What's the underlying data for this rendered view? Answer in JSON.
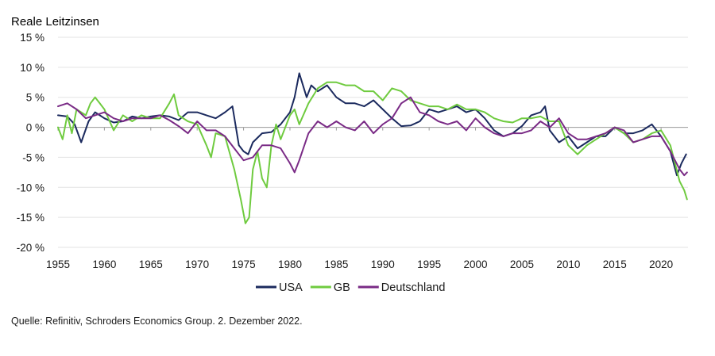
{
  "chart_data": {
    "type": "line",
    "title": "Reale Leitzinsen",
    "xlabel": "",
    "ylabel": "",
    "xlim": [
      1955,
      2022.9
    ],
    "ylim": [
      -20,
      15
    ],
    "x_ticks": [
      "1955",
      "1960",
      "1965",
      "1970",
      "1975",
      "1980",
      "1985",
      "1990",
      "1995",
      "2000",
      "2005",
      "2010",
      "2015",
      "2020"
    ],
    "y_ticks": [
      "15 %",
      "10 %",
      "5 %",
      "0 %",
      "-5 %",
      "-10 %",
      "-15 %",
      "-20 %"
    ],
    "grid": "horizontal",
    "legend_position": "bottom",
    "series": [
      {
        "name": "USA",
        "color": "#1b2a5e",
        "points": [
          [
            1955,
            2
          ],
          [
            1956,
            1.8
          ],
          [
            1956.8,
            0.5
          ],
          [
            1957.5,
            -2.5
          ],
          [
            1958.3,
            1
          ],
          [
            1959,
            2.5
          ],
          [
            1960,
            1.5
          ],
          [
            1961,
            0.8
          ],
          [
            1962,
            1
          ],
          [
            1963,
            1.8
          ],
          [
            1964,
            1.5
          ],
          [
            1965,
            1.8
          ],
          [
            1966,
            2
          ],
          [
            1967,
            1.8
          ],
          [
            1968,
            1.2
          ],
          [
            1969,
            2.5
          ],
          [
            1970,
            2.5
          ],
          [
            1971,
            2
          ],
          [
            1972,
            1.5
          ],
          [
            1973,
            2.5
          ],
          [
            1973.8,
            3.5
          ],
          [
            1974.5,
            -3
          ],
          [
            1975,
            -4
          ],
          [
            1975.5,
            -4.5
          ],
          [
            1976,
            -2.5
          ],
          [
            1977,
            -1
          ],
          [
            1978,
            -0.8
          ],
          [
            1979,
            0.5
          ],
          [
            1980,
            2.5
          ],
          [
            1980.5,
            5
          ],
          [
            1981,
            9
          ],
          [
            1981.3,
            7.5
          ],
          [
            1981.8,
            5
          ],
          [
            1982.3,
            7
          ],
          [
            1983,
            6
          ],
          [
            1984,
            7
          ],
          [
            1985,
            5
          ],
          [
            1986,
            4
          ],
          [
            1987,
            4
          ],
          [
            1988,
            3.5
          ],
          [
            1989,
            4.5
          ],
          [
            1990,
            3
          ],
          [
            1991,
            1.5
          ],
          [
            1992,
            0.2
          ],
          [
            1993,
            0.3
          ],
          [
            1994,
            1
          ],
          [
            1995,
            3
          ],
          [
            1996,
            2.5
          ],
          [
            1997,
            3
          ],
          [
            1998,
            3.5
          ],
          [
            1999,
            2.5
          ],
          [
            2000,
            3
          ],
          [
            2001,
            1.5
          ],
          [
            2002,
            -0.5
          ],
          [
            2003,
            -1.5
          ],
          [
            2004,
            -1
          ],
          [
            2005,
            0.2
          ],
          [
            2006,
            2
          ],
          [
            2007,
            2.5
          ],
          [
            2007.5,
            3.5
          ],
          [
            2008,
            -0.5
          ],
          [
            2009,
            -2.5
          ],
          [
            2010,
            -1.5
          ],
          [
            2011,
            -3.5
          ],
          [
            2012,
            -2.5
          ],
          [
            2013,
            -1.5
          ],
          [
            2014,
            -1.5
          ],
          [
            2015,
            0
          ],
          [
            2016,
            -1
          ],
          [
            2017,
            -1
          ],
          [
            2018,
            -0.5
          ],
          [
            2019,
            0.5
          ],
          [
            2020,
            -1.5
          ],
          [
            2021,
            -4
          ],
          [
            2021.7,
            -8
          ],
          [
            2022.2,
            -6
          ],
          [
            2022.7,
            -4.5
          ]
        ]
      },
      {
        "name": "GB",
        "color": "#6fcb3f",
        "points": [
          [
            1955,
            0
          ],
          [
            1955.5,
            -2
          ],
          [
            1956,
            2
          ],
          [
            1956.5,
            -1
          ],
          [
            1957,
            3
          ],
          [
            1958,
            2
          ],
          [
            1958.5,
            4
          ],
          [
            1959,
            5
          ],
          [
            1959.5,
            4
          ],
          [
            1960,
            3
          ],
          [
            1961,
            -0.5
          ],
          [
            1962,
            2
          ],
          [
            1963,
            1
          ],
          [
            1964,
            2
          ],
          [
            1965,
            1.5
          ],
          [
            1966,
            1.5
          ],
          [
            1967,
            4
          ],
          [
            1967.5,
            5.5
          ],
          [
            1968,
            2
          ],
          [
            1969,
            1
          ],
          [
            1970,
            0.5
          ],
          [
            1971,
            -3
          ],
          [
            1971.5,
            -5
          ],
          [
            1972,
            -1
          ],
          [
            1973,
            -1.5
          ],
          [
            1974,
            -7
          ],
          [
            1974.7,
            -12
          ],
          [
            1975.2,
            -16
          ],
          [
            1975.6,
            -15
          ],
          [
            1976,
            -7
          ],
          [
            1976.5,
            -4
          ],
          [
            1977,
            -8.5
          ],
          [
            1977.5,
            -10
          ],
          [
            1978,
            -3
          ],
          [
            1978.5,
            0.5
          ],
          [
            1979,
            -2
          ],
          [
            1980,
            2
          ],
          [
            1980.5,
            3
          ],
          [
            1981,
            0.5
          ],
          [
            1982,
            4
          ],
          [
            1983,
            6.5
          ],
          [
            1984,
            7.5
          ],
          [
            1985,
            7.5
          ],
          [
            1986,
            7
          ],
          [
            1987,
            7
          ],
          [
            1988,
            6
          ],
          [
            1989,
            6
          ],
          [
            1990,
            4.5
          ],
          [
            1991,
            6.5
          ],
          [
            1992,
            6
          ],
          [
            1993,
            4.5
          ],
          [
            1994,
            4
          ],
          [
            1995,
            3.5
          ],
          [
            1996,
            3.5
          ],
          [
            1997,
            3
          ],
          [
            1998,
            3.8
          ],
          [
            1999,
            3
          ],
          [
            2000,
            3
          ],
          [
            2001,
            2.5
          ],
          [
            2002,
            1.5
          ],
          [
            2003,
            1
          ],
          [
            2004,
            0.8
          ],
          [
            2005,
            1.5
          ],
          [
            2006,
            1.5
          ],
          [
            2007,
            1.8
          ],
          [
            2008,
            1
          ],
          [
            2009,
            1
          ],
          [
            2010,
            -3
          ],
          [
            2011,
            -4.5
          ],
          [
            2012,
            -3
          ],
          [
            2013,
            -2
          ],
          [
            2014,
            -1
          ],
          [
            2015,
            0
          ],
          [
            2016,
            -1
          ],
          [
            2017,
            -2.5
          ],
          [
            2018,
            -2
          ],
          [
            2019,
            -1
          ],
          [
            2020,
            -0.5
          ],
          [
            2021,
            -3
          ],
          [
            2022,
            -9
          ],
          [
            2022.5,
            -10.5
          ],
          [
            2022.8,
            -12
          ]
        ]
      },
      {
        "name": "Deutschland",
        "color": "#7a2b86",
        "points": [
          [
            1955,
            3.5
          ],
          [
            1956,
            4
          ],
          [
            1957,
            3
          ],
          [
            1958,
            1.5
          ],
          [
            1959,
            2
          ],
          [
            1960,
            2.5
          ],
          [
            1961,
            1.5
          ],
          [
            1962,
            1
          ],
          [
            1963,
            1.5
          ],
          [
            1964,
            1.5
          ],
          [
            1965,
            1.5
          ],
          [
            1966,
            2
          ],
          [
            1967,
            1.2
          ],
          [
            1968,
            0.2
          ],
          [
            1969,
            -1
          ],
          [
            1970,
            1
          ],
          [
            1971,
            -0.5
          ],
          [
            1972,
            -0.5
          ],
          [
            1973,
            -1.5
          ],
          [
            1974,
            -3.5
          ],
          [
            1975,
            -5.5
          ],
          [
            1976,
            -5
          ],
          [
            1977,
            -3
          ],
          [
            1978,
            -3
          ],
          [
            1979,
            -3.5
          ],
          [
            1980,
            -6
          ],
          [
            1980.5,
            -7.5
          ],
          [
            1981,
            -5.5
          ],
          [
            1982,
            -1
          ],
          [
            1983,
            1
          ],
          [
            1984,
            0
          ],
          [
            1985,
            1
          ],
          [
            1986,
            0
          ],
          [
            1987,
            -0.5
          ],
          [
            1988,
            1
          ],
          [
            1989,
            -1
          ],
          [
            1990,
            0.5
          ],
          [
            1991,
            1.5
          ],
          [
            1992,
            4
          ],
          [
            1993,
            5
          ],
          [
            1994,
            2.5
          ],
          [
            1995,
            2
          ],
          [
            1996,
            1
          ],
          [
            1997,
            0.5
          ],
          [
            1998,
            1
          ],
          [
            1999,
            -0.5
          ],
          [
            2000,
            1.5
          ],
          [
            2001,
            0
          ],
          [
            2002,
            -1
          ],
          [
            2003,
            -1.5
          ],
          [
            2004,
            -1
          ],
          [
            2005,
            -1
          ],
          [
            2006,
            -0.5
          ],
          [
            2007,
            1
          ],
          [
            2008,
            0
          ],
          [
            2009,
            1.5
          ],
          [
            2010,
            -1
          ],
          [
            2011,
            -2
          ],
          [
            2012,
            -2
          ],
          [
            2013,
            -1.5
          ],
          [
            2014,
            -1
          ],
          [
            2015,
            0
          ],
          [
            2016,
            -0.5
          ],
          [
            2017,
            -2.5
          ],
          [
            2018,
            -2
          ],
          [
            2019,
            -1.5
          ],
          [
            2020,
            -1.5
          ],
          [
            2021,
            -4
          ],
          [
            2022,
            -7
          ],
          [
            2022.5,
            -8
          ],
          [
            2022.8,
            -7.5
          ]
        ]
      }
    ]
  },
  "source": "Quelle: Refinitiv, Schroders Economics Group. 2. Dezember 2022."
}
